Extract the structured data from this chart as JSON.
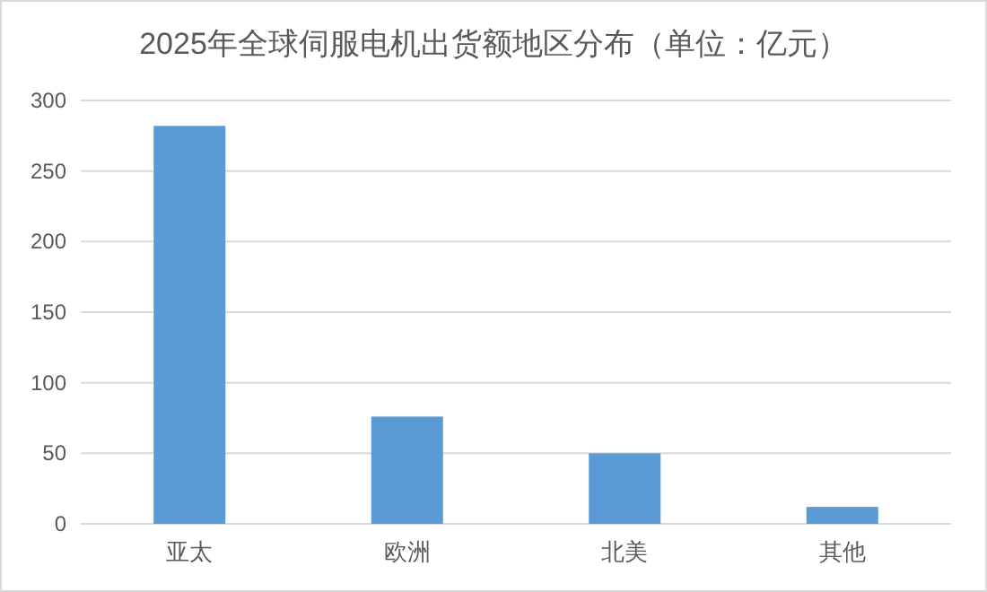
{
  "chart_data": {
    "type": "bar",
    "title": "2025年全球伺服电机出货额地区分布（单位：亿元）",
    "categories": [
      "亚太",
      "欧洲",
      "北美",
      "其他"
    ],
    "values": [
      282,
      76,
      50,
      12
    ],
    "color": "#5b9bd5",
    "ylim": [
      0,
      300
    ],
    "yticks": [
      0,
      50,
      100,
      150,
      200,
      250,
      300
    ],
    "grid": "y"
  }
}
